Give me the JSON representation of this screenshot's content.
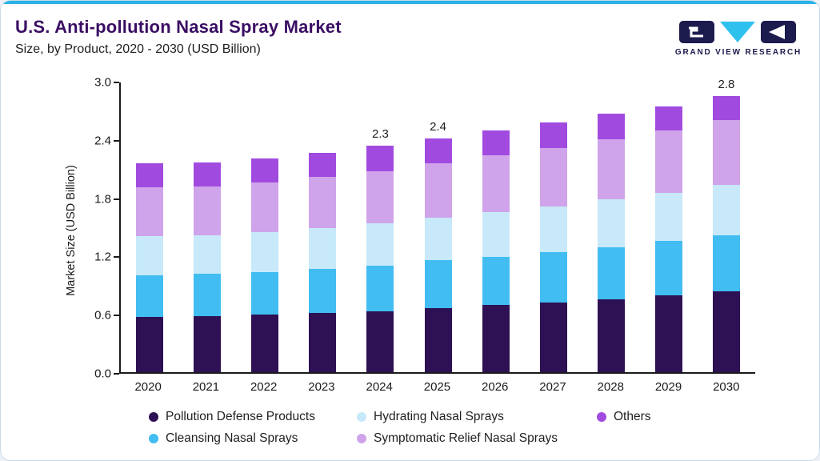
{
  "header": {
    "title": "U.S. Anti-pollution Nasal Spray Market",
    "subtitle": "Size, by Product, 2020 - 2030 (USD Billion)",
    "brand": "GRAND VIEW RESEARCH"
  },
  "colors": {
    "accent_line": "#2ab2e6",
    "title_text": "#3a0e63",
    "axis": "#1a1a1a",
    "brand_navy": "#1c1b4e",
    "brand_cyan": "#2fc1ee"
  },
  "chart_data": {
    "type": "bar",
    "stacked": true,
    "title": "U.S. Anti-pollution Nasal Spray Market Size, by Product, 2020 - 2030 (USD Billion)",
    "xlabel": "",
    "ylabel": "Market Size (USD Billion)",
    "ylim": [
      0,
      3.0
    ],
    "yticks": [
      "0.0",
      "0.6",
      "1.2",
      "1.8",
      "2.4",
      "3.0"
    ],
    "grid": false,
    "legend_position": "bottom",
    "categories": [
      "2020",
      "2021",
      "2022",
      "2023",
      "2024",
      "2025",
      "2026",
      "2027",
      "2028",
      "2029",
      "2030"
    ],
    "series": [
      {
        "name": "Pollution Defense Products",
        "color": "#2e1054",
        "values": [
          0.57,
          0.58,
          0.59,
          0.61,
          0.63,
          0.66,
          0.69,
          0.72,
          0.75,
          0.79,
          0.83
        ]
      },
      {
        "name": "Cleansing Nasal Sprays",
        "color": "#41bdf1",
        "values": [
          0.43,
          0.43,
          0.44,
          0.45,
          0.47,
          0.49,
          0.5,
          0.52,
          0.54,
          0.56,
          0.58
        ]
      },
      {
        "name": "Hydrating Nasal Sprays",
        "color": "#c7e9f9",
        "values": [
          0.4,
          0.4,
          0.41,
          0.42,
          0.43,
          0.44,
          0.46,
          0.47,
          0.49,
          0.5,
          0.52
        ]
      },
      {
        "name": "Symptomatic Relief Nasal Sprays",
        "color": "#cfa4ea",
        "values": [
          0.5,
          0.5,
          0.51,
          0.53,
          0.54,
          0.56,
          0.58,
          0.6,
          0.62,
          0.64,
          0.67
        ]
      },
      {
        "name": "Others",
        "color": "#a14ae0",
        "values": [
          0.25,
          0.25,
          0.25,
          0.25,
          0.26,
          0.26,
          0.26,
          0.26,
          0.26,
          0.25,
          0.24
        ]
      }
    ],
    "bar_labels": {
      "2024": "2.3",
      "2025": "2.4",
      "2030": "2.8"
    },
    "legend_rows": [
      [
        "Pollution Defense Products",
        "Hydrating Nasal Sprays",
        "Others"
      ],
      [
        "Cleansing Nasal Sprays",
        "Symptomatic Relief Nasal Sprays"
      ]
    ]
  }
}
